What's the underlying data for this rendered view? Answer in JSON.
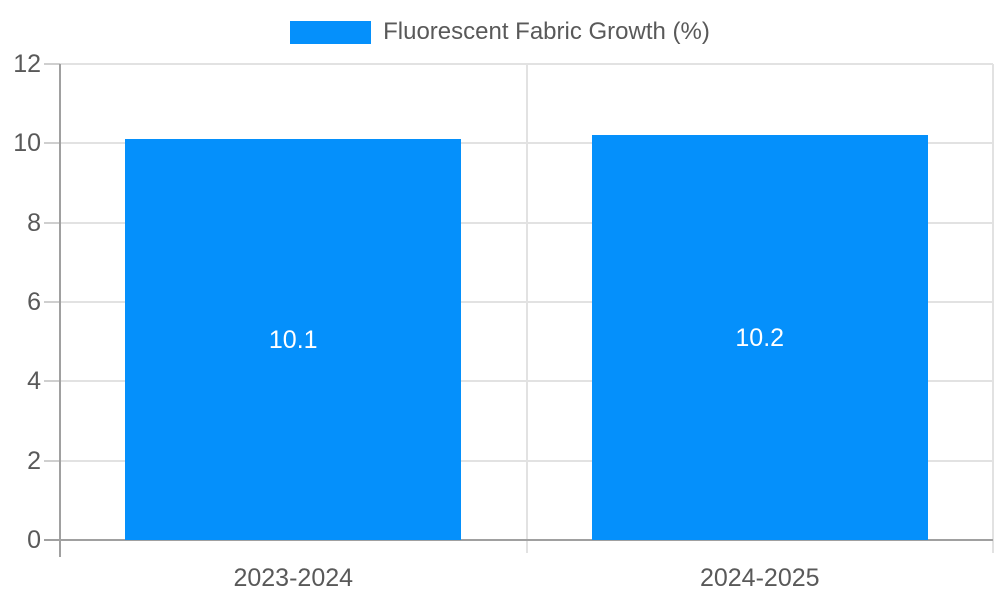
{
  "chart_data": {
    "type": "bar",
    "title": "",
    "categories": [
      "2023-2024",
      "2024-2025"
    ],
    "series": [
      {
        "name": "Fluorescent Fabric Growth (%)",
        "values": [
          10.1,
          10.2
        ],
        "value_labels": [
          "10.1",
          "10.2"
        ],
        "color": "#0590FB"
      }
    ],
    "xlabel": "",
    "ylabel": "",
    "ylim": [
      0,
      12
    ],
    "yticks": [
      0,
      2,
      4,
      6,
      8,
      10,
      12
    ],
    "ytick_labels": [
      "0",
      "2",
      "4",
      "6",
      "8",
      "10",
      "12"
    ],
    "grid": true,
    "legend_position": "top-center",
    "value_label_position": "center-of-bar"
  },
  "colors": {
    "bar": "#0590FB",
    "axis": "#a0a0a0",
    "grid": "#e2e2e2",
    "tick_minor": "#cfcfcf",
    "text": "#595959",
    "value_label": "#ffffff",
    "background": "#ffffff"
  }
}
